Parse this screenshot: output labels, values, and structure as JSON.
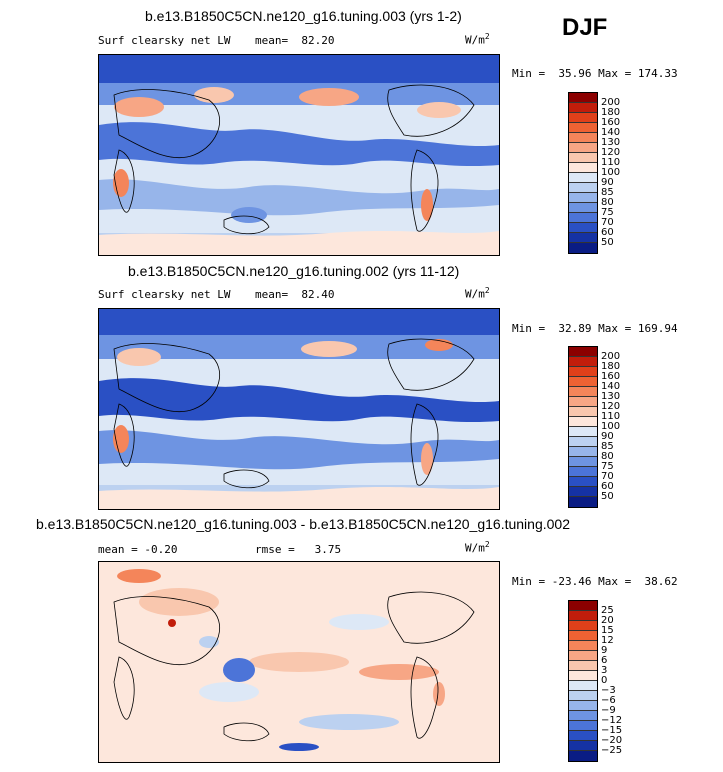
{
  "season": "DJF",
  "units": "W/m",
  "units_sup": "2",
  "chart_data": [
    {
      "type": "heatmap",
      "title": "b.e13.B1850C5CN.ne120_g16.tuning.003 (yrs 1-2)",
      "variable": "Surf clearsky net LW",
      "mean_label": "mean=",
      "mean": "82.20",
      "minmax_min_label": "Min =",
      "min": "35.96",
      "minmax_max_label": "Max =",
      "max": "174.33",
      "colorbar_levels": [
        "200",
        "180",
        "160",
        "140",
        "130",
        "120",
        "110",
        "100",
        "90",
        "85",
        "80",
        "75",
        "70",
        "60",
        "50"
      ],
      "colorbar_colors": [
        "#8b0000",
        "#c11d0b",
        "#e0401a",
        "#ee6233",
        "#f4855a",
        "#f7a685",
        "#f9c7ae",
        "#fde7dc",
        "#dde8f6",
        "#bcd1f0",
        "#97b5ea",
        "#6e94e2",
        "#4c74d8",
        "#2a50c4",
        "#1532a4",
        "#0a1c84"
      ]
    },
    {
      "type": "heatmap",
      "title": "b.e13.B1850C5CN.ne120_g16.tuning.002 (yrs 11-12)",
      "variable": "Surf clearsky net LW",
      "mean_label": "mean=",
      "mean": "82.40",
      "minmax_min_label": "Min =",
      "min": "32.89",
      "minmax_max_label": "Max =",
      "max": "169.94",
      "colorbar_levels": [
        "200",
        "180",
        "160",
        "140",
        "130",
        "120",
        "110",
        "100",
        "90",
        "85",
        "80",
        "75",
        "70",
        "60",
        "50"
      ],
      "colorbar_colors": [
        "#8b0000",
        "#c11d0b",
        "#e0401a",
        "#ee6233",
        "#f4855a",
        "#f7a685",
        "#f9c7ae",
        "#fde7dc",
        "#dde8f6",
        "#bcd1f0",
        "#97b5ea",
        "#6e94e2",
        "#4c74d8",
        "#2a50c4",
        "#1532a4",
        "#0a1c84"
      ]
    },
    {
      "type": "heatmap",
      "title": "b.e13.B1850C5CN.ne120_g16.tuning.003 - b.e13.B1850C5CN.ne120_g16.tuning.002",
      "mean_label": "mean =",
      "mean": "-0.20",
      "rmse_label": "rmse =",
      "rmse": "3.75",
      "minmax_min_label": "Min =",
      "min": "-23.46",
      "minmax_max_label": "Max =",
      "max": "38.62",
      "colorbar_levels": [
        "25",
        "20",
        "15",
        "12",
        "9",
        "6",
        "3",
        "0",
        "-3",
        "-6",
        "-9",
        "-12",
        "-15",
        "-20",
        "-25"
      ],
      "colorbar_colors": [
        "#8b0000",
        "#c11d0b",
        "#e0401a",
        "#ee6233",
        "#f4855a",
        "#f7a685",
        "#f9c7ae",
        "#fde7dc",
        "#dde8f6",
        "#bcd1f0",
        "#97b5ea",
        "#6e94e2",
        "#4c74d8",
        "#2a50c4",
        "#1532a4",
        "#0a1c84"
      ]
    }
  ]
}
